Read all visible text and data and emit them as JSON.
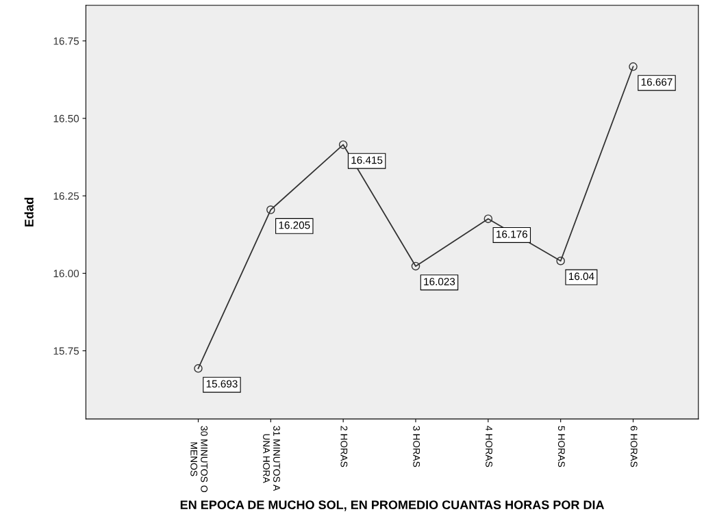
{
  "chart_data": {
    "type": "line",
    "xlabel": "EN EPOCA DE MUCHO SOL, EN PROMEDIO CUANTAS HORAS POR DIA",
    "ylabel": "Edad",
    "categories": [
      "30 MINUTOS O\nMENOS",
      "31 MINUTOS A\nUNA HORA",
      "2 HORAS",
      "3 HORAS",
      "4 HORAS",
      "5 HORAS",
      "6 HORAS"
    ],
    "series": [
      {
        "color": "#333333",
        "values": [
          15.693,
          16.205,
          16.415,
          16.023,
          16.176,
          16.04,
          16.667
        ]
      }
    ],
    "ylim": [
      15.53,
      16.865
    ],
    "yticks": [
      {
        "value": 15.75,
        "label": "15.75"
      },
      {
        "value": 16.0,
        "label": "16.00"
      },
      {
        "value": 16.25,
        "label": "16.25"
      },
      {
        "value": 16.5,
        "label": "16.50"
      },
      {
        "value": 16.75,
        "label": "16.75"
      }
    ],
    "data_labels": true,
    "marker": "circle",
    "line_style": "solid",
    "grid": false,
    "legend": false
  }
}
